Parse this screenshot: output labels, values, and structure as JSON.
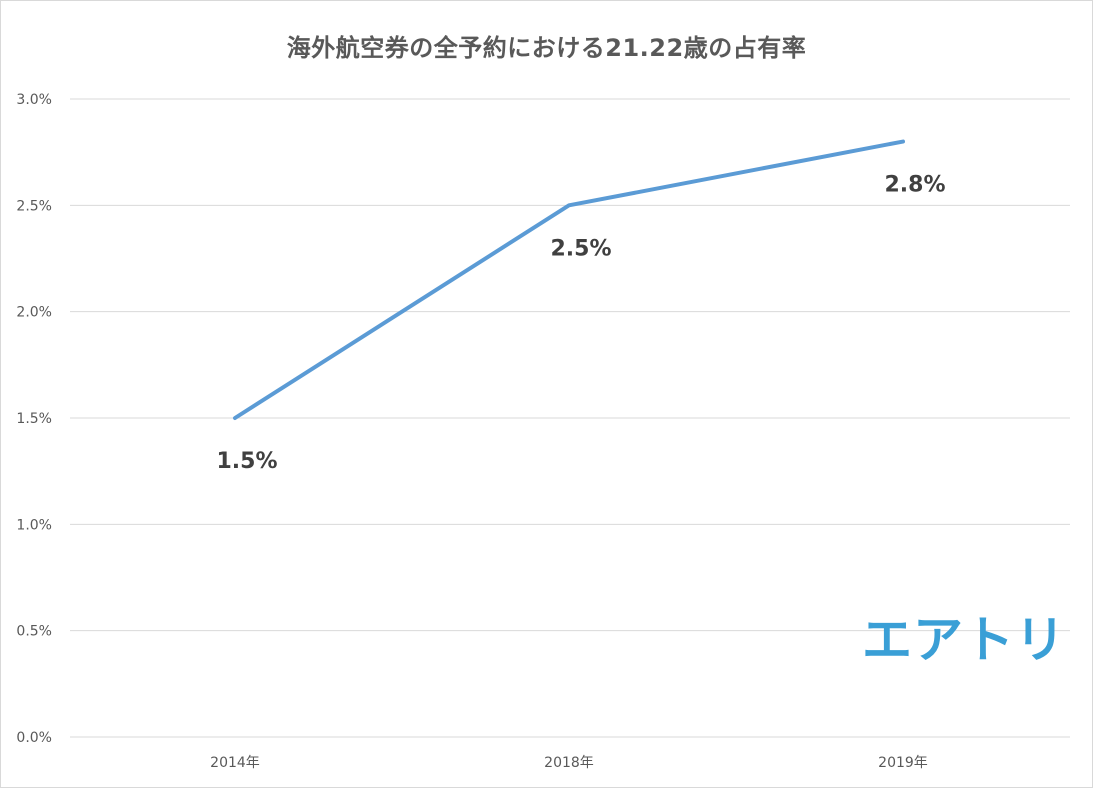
{
  "title": "海外航空券の全予約における21.22歳の占有率",
  "logo_text": "エアトリ",
  "colors": {
    "line": "#5b9bd5",
    "grid": "#d9d9d9",
    "logo": "#3a9fd6"
  },
  "chart_data": {
    "type": "line",
    "title": "海外航空券の全予約における21.22歳の占有率",
    "categories": [
      "2014年",
      "2018年",
      "2019年"
    ],
    "series": [
      {
        "values": [
          1.5,
          2.5,
          2.8
        ],
        "labels": [
          "1.5%",
          "2.5%",
          "2.8%"
        ]
      }
    ],
    "y_ticks": [
      "0.0%",
      "0.5%",
      "1.0%",
      "1.5%",
      "2.0%",
      "2.5%",
      "3.0%"
    ],
    "y_tick_values": [
      0,
      0.5,
      1.0,
      1.5,
      2.0,
      2.5,
      3.0
    ],
    "ylim": [
      0,
      3.0
    ],
    "grid": true,
    "legend": "none",
    "data_label_position": "below"
  }
}
